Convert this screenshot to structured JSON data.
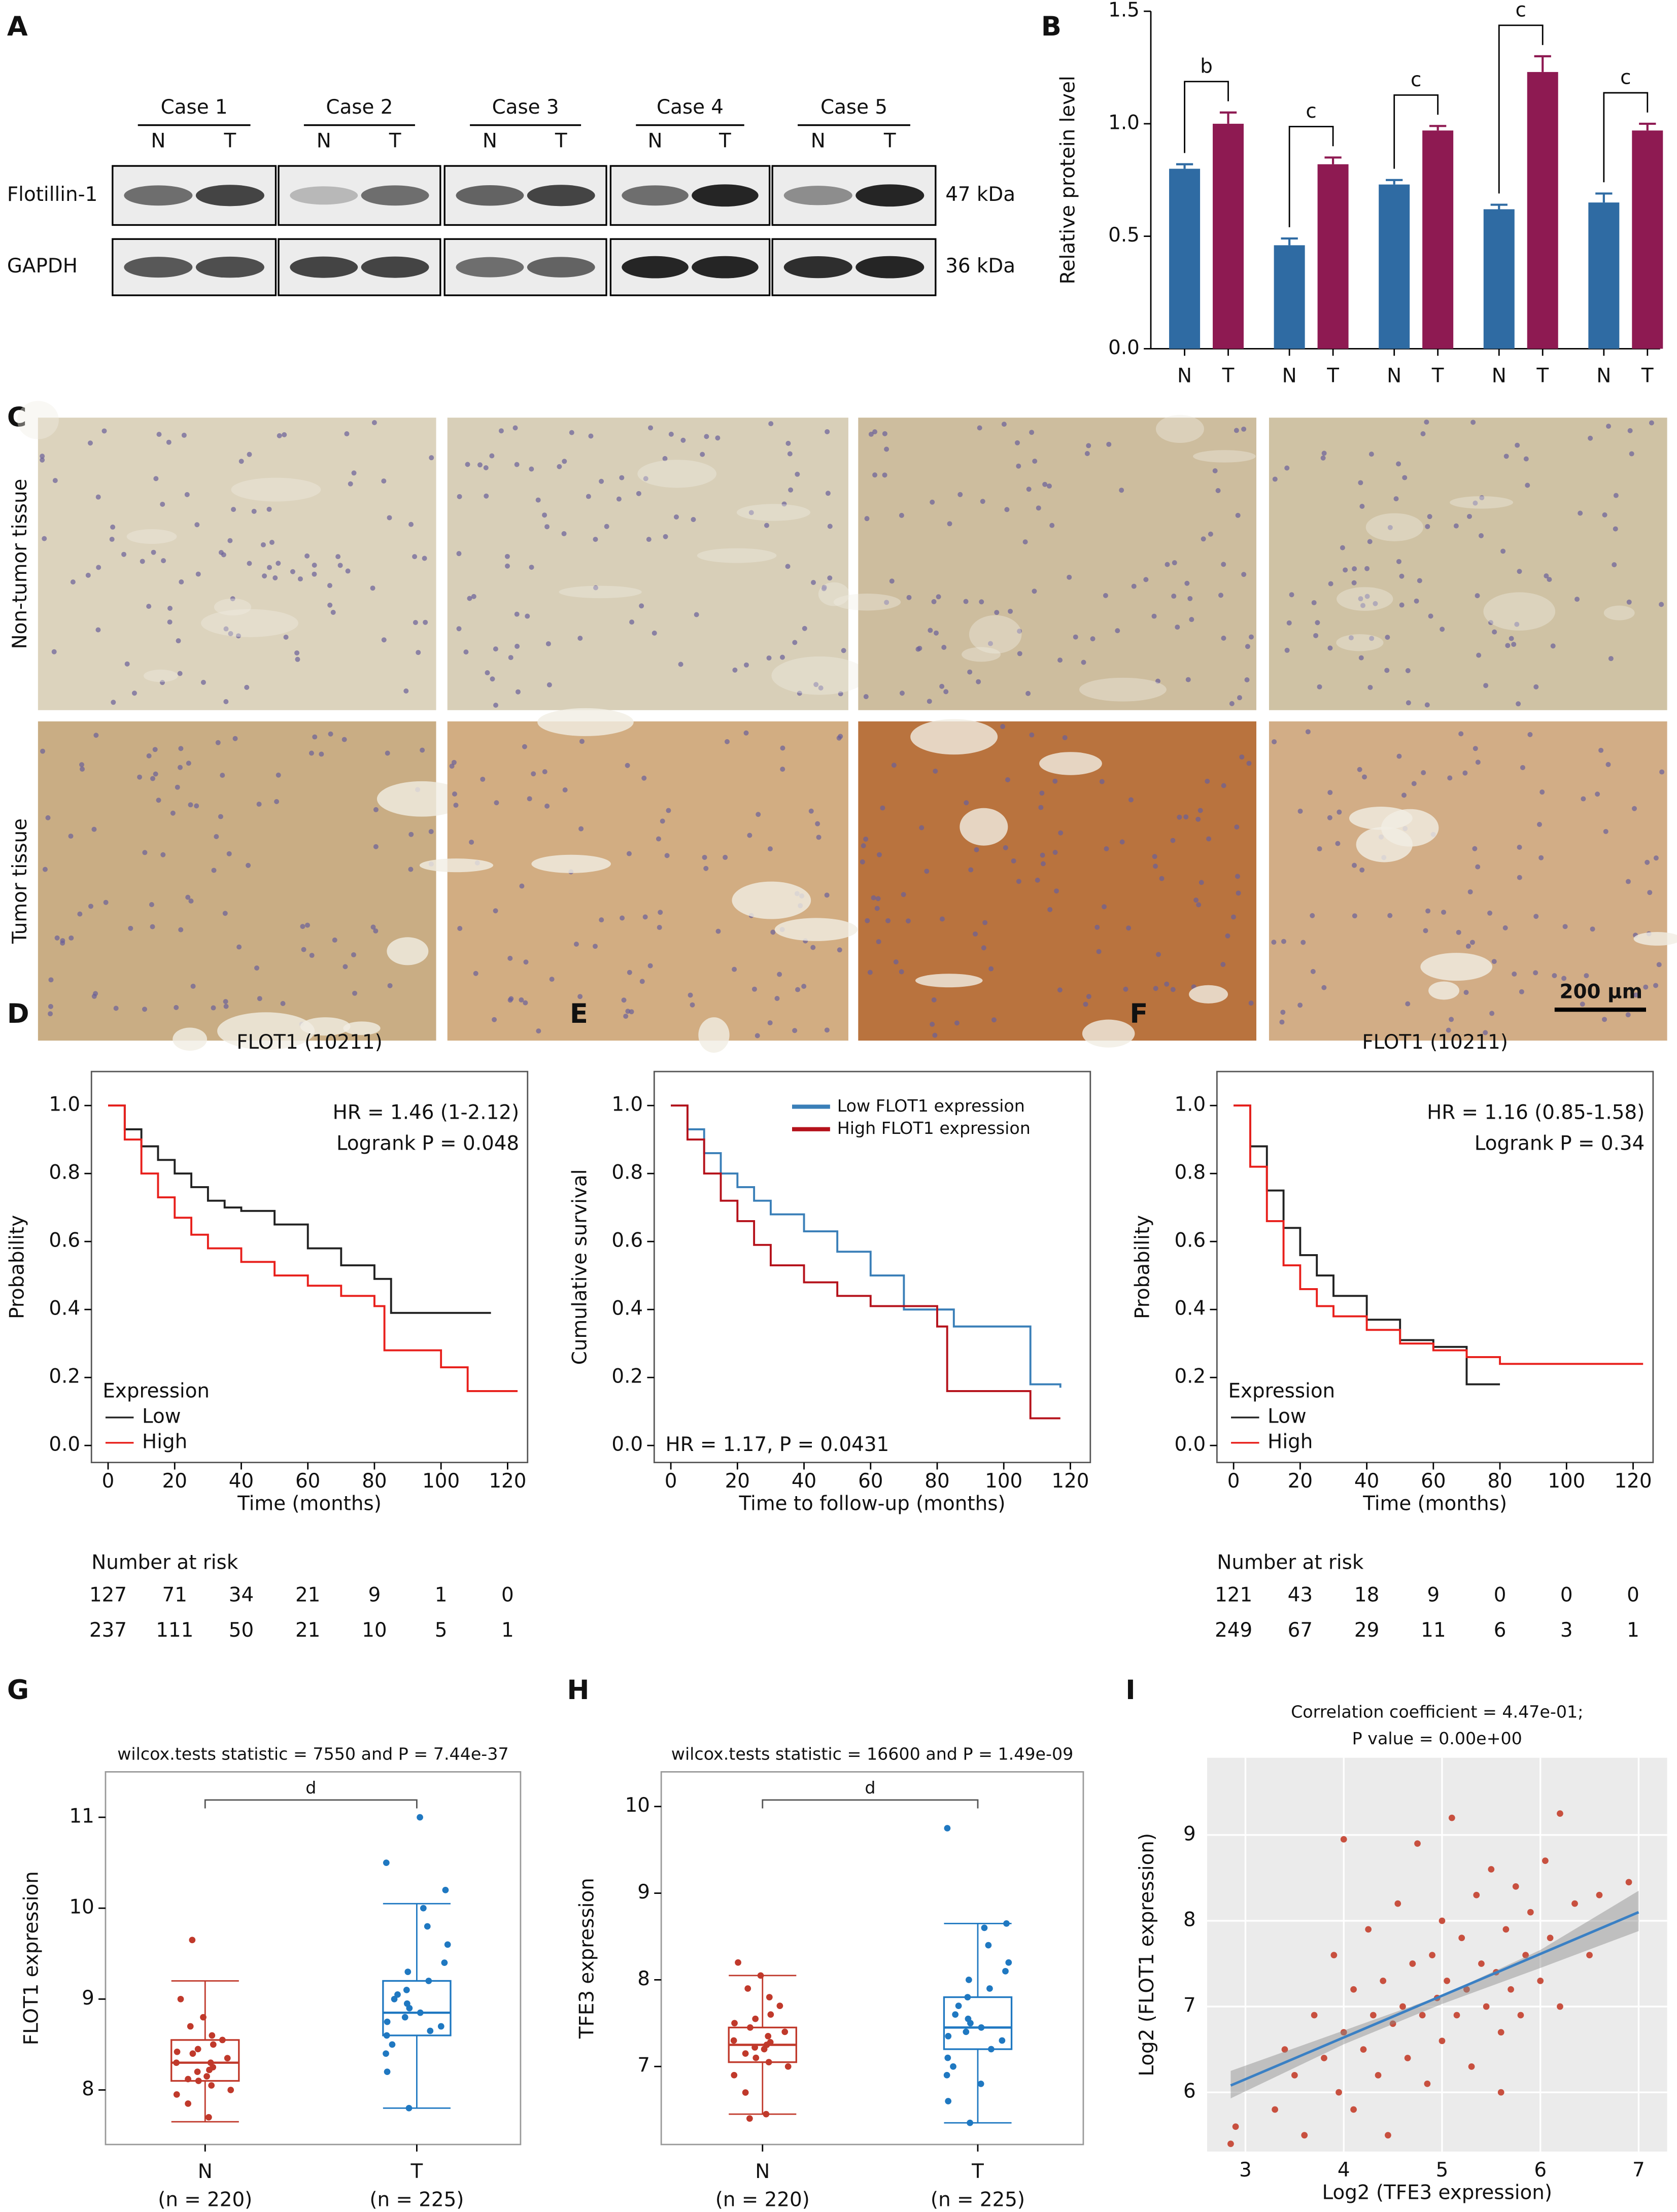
{
  "blot": {
    "panel": "A",
    "cases": [
      {
        "name": "Case 1",
        "lanes": [
          "N",
          "T"
        ]
      },
      {
        "name": "Case 2",
        "lanes": [
          "N",
          "T"
        ]
      },
      {
        "name": "Case 3",
        "lanes": [
          "N",
          "T"
        ]
      },
      {
        "name": "Case 4",
        "lanes": [
          "N",
          "T"
        ]
      },
      {
        "name": "Case 5",
        "lanes": [
          "N",
          "T"
        ]
      }
    ],
    "rows": [
      {
        "name": "Flotillin-1",
        "size": "47 kDa"
      },
      {
        "name": "GAPDH",
        "size": "36 kDa"
      }
    ]
  },
  "ihc": {
    "panel": "C",
    "rows": [
      "Non-tumor tissue",
      "Tumor tissue"
    ],
    "scale_bar": "200 μm"
  },
  "chart_data": [
    {
      "panel": "B",
      "type": "bar",
      "ylabel": "Relative protein level",
      "categories": [
        "N",
        "T",
        "N",
        "T",
        "N",
        "T",
        "N",
        "T",
        "N",
        "T"
      ],
      "values": [
        0.8,
        1.0,
        0.46,
        0.82,
        0.73,
        0.97,
        0.62,
        1.23,
        0.65,
        0.97
      ],
      "errors": [
        0.02,
        0.05,
        0.03,
        0.03,
        0.02,
        0.02,
        0.02,
        0.07,
        0.04,
        0.03
      ],
      "colors": [
        "#2f6ba3",
        "#8e1a52",
        "#2f6ba3",
        "#8e1a52",
        "#2f6ba3",
        "#8e1a52",
        "#2f6ba3",
        "#8e1a52",
        "#2f6ba3",
        "#8e1a52"
      ],
      "significance": [
        "b",
        "c",
        "c",
        "c",
        "c"
      ],
      "ylim": [
        0,
        1.5
      ],
      "yticks": [
        {
          "value": 0,
          "label": "0.0"
        },
        0.5,
        {
          "value": 1,
          "label": "1.0"
        },
        1.5
      ]
    },
    {
      "panel": "D",
      "type": "km",
      "title": "FLOT1 (10211)",
      "annotations": [
        "HR = 1.46 (1-2.12)",
        "Logrank P = 0.048"
      ],
      "annotation_corner": "upper right",
      "xlabel": "Time (months)",
      "ylabel": "Probability",
      "xlim": [
        -5,
        126
      ],
      "ylim": [
        -0.05,
        1.1
      ],
      "xticks": [
        0,
        20,
        40,
        60,
        80,
        100,
        120
      ],
      "yticks": [
        {
          "value": 0,
          "label": "0.0"
        },
        0.2,
        0.4,
        0.6,
        0.8,
        {
          "value": 1,
          "label": "1.0"
        }
      ],
      "legend": "lower left",
      "legend_title": "Expression",
      "risk_title": "Number at risk",
      "series": [
        {
          "name": "Low",
          "color": "#222222",
          "x": [
            0,
            5,
            10,
            15,
            20,
            25,
            30,
            35,
            40,
            50,
            60,
            70,
            80,
            85,
            90,
            115
          ],
          "y": [
            1,
            0.93,
            0.88,
            0.84,
            0.8,
            0.76,
            0.72,
            0.7,
            0.69,
            0.65,
            0.58,
            0.53,
            0.49,
            0.39,
            0.39,
            0.39
          ],
          "at_risk": [
            127,
            71,
            34,
            21,
            9,
            1,
            0
          ]
        },
        {
          "name": "High",
          "color": "#e8201c",
          "x": [
            0,
            5,
            10,
            15,
            20,
            25,
            30,
            40,
            50,
            60,
            70,
            80,
            83,
            90,
            100,
            108,
            115,
            123
          ],
          "y": [
            1,
            0.9,
            0.8,
            0.73,
            0.67,
            0.62,
            0.58,
            0.54,
            0.5,
            0.47,
            0.44,
            0.41,
            0.28,
            0.28,
            0.23,
            0.16,
            0.16,
            0.16
          ],
          "at_risk": [
            237,
            111,
            50,
            21,
            10,
            5,
            1
          ]
        }
      ]
    },
    {
      "panel": "E",
      "type": "km",
      "annotations": [
        "HR = 1.17, P = 0.0431"
      ],
      "annotation_corner": "lower left",
      "annotation_color": "#8b1a1a",
      "xlabel": "Time to follow-up (months)",
      "ylabel": "Cumulative survival",
      "xlim": [
        -5,
        126
      ],
      "ylim": [
        -0.05,
        1.1
      ],
      "xticks": [
        0,
        20,
        40,
        60,
        80,
        100,
        120
      ],
      "yticks": [
        {
          "value": 0,
          "label": "0.0"
        },
        0.2,
        0.4,
        0.6,
        0.8,
        {
          "value": 1,
          "label": "1.0"
        }
      ],
      "legend": "upper right",
      "series": [
        {
          "name": "Low FLOT1 expression",
          "color": "#3a7fb8",
          "x": [
            0,
            5,
            10,
            15,
            20,
            25,
            30,
            40,
            50,
            60,
            70,
            80,
            85,
            100,
            108,
            117
          ],
          "y": [
            1,
            0.93,
            0.86,
            0.8,
            0.76,
            0.72,
            0.68,
            0.63,
            0.57,
            0.5,
            0.4,
            0.4,
            0.35,
            0.35,
            0.18,
            0.17
          ]
        },
        {
          "name": "High FLOT1 expression",
          "color": "#b5121b",
          "x": [
            0,
            5,
            10,
            15,
            20,
            25,
            30,
            40,
            50,
            60,
            70,
            80,
            83,
            108,
            117
          ],
          "y": [
            1,
            0.9,
            0.8,
            0.72,
            0.66,
            0.59,
            0.53,
            0.48,
            0.44,
            0.41,
            0.41,
            0.35,
            0.16,
            0.08,
            0.08
          ]
        }
      ]
    },
    {
      "panel": "F",
      "type": "km",
      "title": "FLOT1 (10211)",
      "annotations": [
        "HR = 1.16 (0.85-1.58)",
        "Logrank P = 0.34"
      ],
      "annotation_corner": "upper right",
      "xlabel": "Time (months)",
      "ylabel": "Probability",
      "xlim": [
        -5,
        126
      ],
      "ylim": [
        -0.05,
        1.1
      ],
      "xticks": [
        0,
        20,
        40,
        60,
        80,
        100,
        120
      ],
      "yticks": [
        {
          "value": 0,
          "label": "0.0"
        },
        0.2,
        0.4,
        0.6,
        0.8,
        {
          "value": 1,
          "label": "1.0"
        }
      ],
      "legend": "lower left",
      "legend_title": "Expression",
      "risk_title": "Number at risk",
      "series": [
        {
          "name": "Low",
          "color": "#222222",
          "x": [
            0,
            5,
            10,
            15,
            20,
            25,
            30,
            40,
            50,
            60,
            70,
            80
          ],
          "y": [
            1,
            0.88,
            0.75,
            0.64,
            0.56,
            0.5,
            0.44,
            0.37,
            0.31,
            0.29,
            0.18,
            0.18
          ],
          "at_risk": [
            121,
            43,
            18,
            9,
            0,
            0,
            0
          ]
        },
        {
          "name": "High",
          "color": "#e8201c",
          "x": [
            0,
            5,
            10,
            15,
            20,
            25,
            30,
            40,
            50,
            60,
            70,
            80,
            100,
            123
          ],
          "y": [
            1,
            0.82,
            0.66,
            0.53,
            0.46,
            0.41,
            0.38,
            0.34,
            0.3,
            0.28,
            0.26,
            0.24,
            0.24,
            0.24
          ],
          "at_risk": [
            249,
            67,
            29,
            11,
            6,
            3,
            1
          ]
        }
      ]
    },
    {
      "panel": "G",
      "type": "box",
      "subtitle": "wilcox.tests statistic = 7550 and P = 7.44e-37",
      "ylabel": "FLOT1 expression",
      "significance": "d",
      "categories": [
        "N",
        "T"
      ],
      "category_notes": [
        "(n = 220)",
        "(n = 225)"
      ],
      "ylim": [
        7.4,
        11.5
      ],
      "yticks": [
        8,
        9,
        10,
        11
      ],
      "boxes": [
        {
          "color": "#c0392b",
          "min": 7.65,
          "q1": 8.1,
          "median": 8.3,
          "q3": 8.55,
          "max": 9.2,
          "points": [
            7.7,
            7.85,
            7.95,
            8.0,
            8.05,
            8.1,
            8.12,
            8.15,
            8.2,
            8.22,
            8.25,
            8.3,
            8.3,
            8.35,
            8.4,
            8.42,
            8.45,
            8.5,
            8.55,
            8.6,
            8.7,
            8.8,
            9.0,
            9.65
          ]
        },
        {
          "color": "#1f78c1",
          "min": 7.8,
          "q1": 8.6,
          "median": 8.85,
          "q3": 9.2,
          "max": 10.05,
          "points": [
            7.8,
            8.2,
            8.4,
            8.5,
            8.6,
            8.65,
            8.7,
            8.75,
            8.8,
            8.85,
            8.9,
            8.95,
            9.0,
            9.05,
            9.1,
            9.2,
            9.3,
            9.4,
            9.6,
            9.8,
            10.0,
            10.2,
            10.5,
            11.0
          ]
        }
      ]
    },
    {
      "panel": "H",
      "type": "box",
      "subtitle": "wilcox.tests statistic = 16600 and P = 1.49e-09",
      "ylabel": "TFE3 expression",
      "significance": "d",
      "categories": [
        "N",
        "T"
      ],
      "category_notes": [
        "(n = 220)",
        "(n = 225)"
      ],
      "ylim": [
        6.1,
        10.4
      ],
      "yticks": [
        7,
        8,
        9,
        10
      ],
      "boxes": [
        {
          "color": "#c0392b",
          "min": 6.45,
          "q1": 7.05,
          "median": 7.25,
          "q3": 7.45,
          "max": 8.05,
          "points": [
            6.45,
            6.7,
            6.9,
            7.0,
            7.05,
            7.1,
            7.15,
            7.2,
            7.22,
            7.25,
            7.28,
            7.3,
            7.35,
            7.4,
            7.45,
            7.5,
            7.55,
            7.6,
            7.7,
            7.8,
            7.9,
            8.05,
            8.2,
            6.4
          ]
        },
        {
          "color": "#1f78c1",
          "min": 6.35,
          "q1": 7.2,
          "median": 7.45,
          "q3": 7.8,
          "max": 8.65,
          "points": [
            6.35,
            6.6,
            6.9,
            7.0,
            7.1,
            7.2,
            7.3,
            7.35,
            7.4,
            7.45,
            7.5,
            7.55,
            7.6,
            7.7,
            7.8,
            7.9,
            8.0,
            8.1,
            8.2,
            8.4,
            8.6,
            8.65,
            9.75,
            6.8
          ]
        }
      ]
    },
    {
      "panel": "I",
      "type": "scatter",
      "title": [
        "Correlation coefficient = 4.47e-01;",
        "P value = 0.00e+00"
      ],
      "xlabel": "Log2 (TFE3 expression)",
      "ylabel": "Log2 (FLOT1 expression)",
      "xlim": [
        2.61,
        7.29
      ],
      "ylim": [
        5.31,
        9.9
      ],
      "xticks": [
        3,
        4,
        5,
        6,
        7
      ],
      "yticks": [
        6,
        7,
        8,
        9
      ],
      "grid": true,
      "color": "#c8503f",
      "x": [
        2.85,
        2.9,
        3.3,
        3.4,
        3.5,
        3.6,
        3.7,
        3.8,
        3.9,
        3.95,
        4.0,
        4.1,
        4.1,
        4.2,
        4.25,
        4.3,
        4.35,
        4.4,
        4.45,
        4.5,
        4.55,
        4.6,
        4.65,
        4.7,
        4.75,
        4.8,
        4.85,
        4.9,
        4.95,
        5.0,
        5.0,
        5.05,
        5.1,
        5.15,
        5.2,
        5.25,
        5.3,
        5.35,
        5.4,
        5.45,
        5.5,
        5.55,
        5.6,
        5.65,
        5.7,
        5.75,
        5.8,
        5.85,
        5.9,
        6.0,
        6.05,
        6.1,
        6.2,
        6.2,
        6.35,
        6.5,
        6.6,
        6.9,
        4.0,
        5.6
      ],
      "y": [
        5.4,
        5.6,
        5.8,
        6.5,
        6.2,
        5.5,
        6.9,
        6.4,
        7.6,
        6.0,
        6.7,
        7.2,
        5.8,
        6.5,
        7.9,
        6.9,
        6.2,
        7.3,
        5.5,
        6.8,
        8.2,
        7.0,
        6.4,
        7.5,
        8.9,
        6.9,
        6.1,
        7.6,
        7.1,
        8.0,
        6.6,
        7.3,
        9.2,
        6.9,
        7.8,
        7.2,
        6.3,
        8.3,
        7.5,
        7.0,
        8.6,
        7.4,
        6.7,
        7.9,
        7.2,
        8.4,
        6.9,
        7.6,
        8.1,
        7.3,
        8.7,
        7.8,
        9.25,
        7.0,
        8.2,
        7.6,
        8.3,
        8.45,
        8.95,
        6.0
      ],
      "fit": {
        "color": "#3a80c4",
        "x": [
          2.85,
          7
        ],
        "y": [
          6.08,
          8.1
        ]
      },
      "ci": {
        "x": [
          2.85,
          4,
          5,
          6,
          7
        ],
        "lower": [
          5.93,
          6.56,
          7.03,
          7.45,
          7.88
        ],
        "upper": [
          6.25,
          6.72,
          7.13,
          7.66,
          8.35
        ]
      }
    }
  ]
}
